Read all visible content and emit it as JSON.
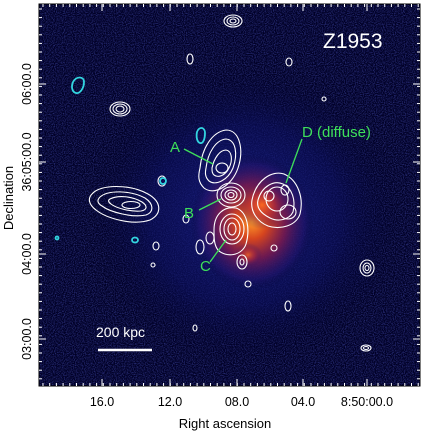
{
  "figure": {
    "cluster_name": "Z1953",
    "scale_bar_label": "200 kpc",
    "x_axis_title": "Right ascension",
    "y_axis_title": "Declination",
    "x_tick_labels": [
      "16.0",
      "12.0",
      "08.0",
      "04.0",
      "8:50:00.0"
    ],
    "y_tick_labels": [
      "06:00.0",
      "36:05:00.0",
      "04:00.0",
      "03:00.0"
    ],
    "source_labels": {
      "a": "A",
      "b": "B",
      "c": "C",
      "d": "D (diffuse)"
    },
    "colors": {
      "background": "#000026",
      "contour": "#ffffff",
      "negative_contour": "#33d6e0",
      "annotation": "#3ee05a",
      "emission_core": "#e0471a"
    }
  }
}
